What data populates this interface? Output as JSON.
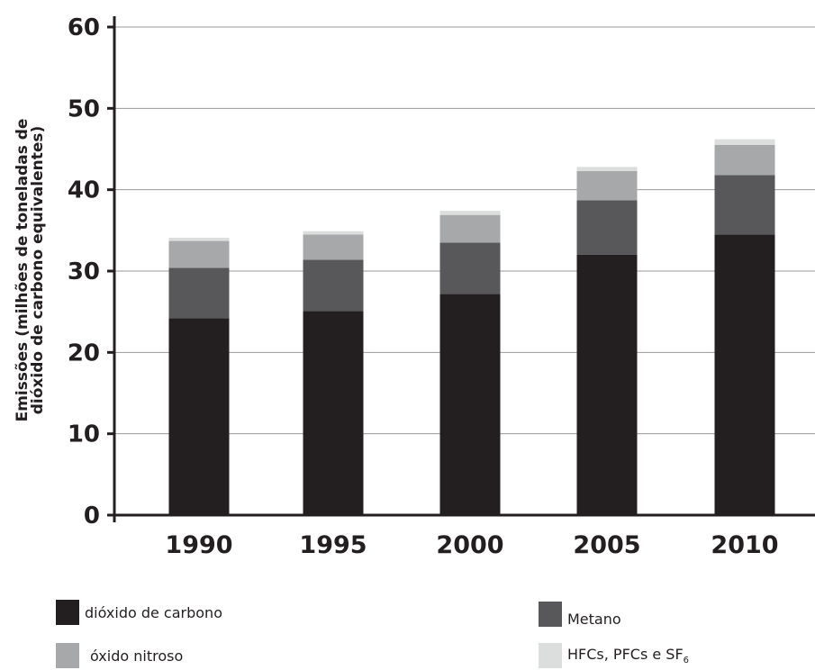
{
  "chart_data": {
    "type": "bar",
    "stacked": true,
    "categories": [
      "1990",
      "1995",
      "2000",
      "2005",
      "2010"
    ],
    "series": [
      {
        "name": "dióxido de carbono",
        "color": "#231f20",
        "values": [
          24.2,
          25.1,
          27.2,
          32.0,
          34.5
        ]
      },
      {
        "name": "Metano",
        "color": "#58585a",
        "values": [
          6.2,
          6.3,
          6.3,
          6.7,
          7.3
        ]
      },
      {
        "name": "óxido nitroso",
        "color": "#a7a8aa",
        "values": [
          3.3,
          3.1,
          3.4,
          3.6,
          3.7
        ]
      },
      {
        "name": "HFCs, PFCs e SF",
        "name_sub": "6",
        "color": "#dcdddd",
        "values": [
          0.4,
          0.4,
          0.5,
          0.5,
          0.7
        ]
      }
    ],
    "ylabel_line1": "Emissões (milhões de toneladas de",
    "ylabel_line2": "dióxido de carbono equivalentes)",
    "ylim": [
      0,
      60
    ],
    "yticks": [
      "0",
      "10",
      "20",
      "30",
      "40",
      "50",
      "60"
    ],
    "grid": true
  }
}
